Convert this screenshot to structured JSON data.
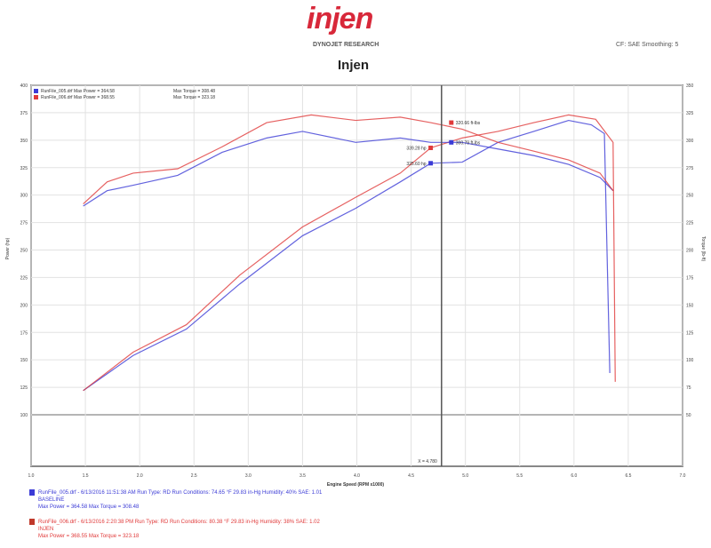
{
  "header": {
    "logo": "injen",
    "company": "DYNOJET RESEARCH",
    "title": "Injen",
    "correction": "CF: SAE  Smoothing: 5"
  },
  "chart_data": {
    "type": "line",
    "xlabel": "Engine Speed (RPM x1000)",
    "ylabel_left": "Power (hp)",
    "ylabel_right": "Torque (lb-ft)",
    "xlim": [
      1.0,
      7.0
    ],
    "xticks": [
      "1.0",
      "1.5",
      "2.0",
      "2.5",
      "3.0",
      "3.5",
      "4.0",
      "4.5",
      "5.0",
      "5.5",
      "6.0",
      "6.5",
      "7.0"
    ],
    "ylim_left": [
      100,
      400
    ],
    "yticks_left": [
      "100",
      "125",
      "150",
      "175",
      "200",
      "225",
      "250",
      "275",
      "300",
      "325",
      "350",
      "375",
      "400"
    ],
    "ylim_right": [
      50,
      350
    ],
    "yticks_right": [
      "50",
      "75",
      "100",
      "125",
      "150",
      "175",
      "200",
      "225",
      "250",
      "275",
      "300",
      "325",
      "350"
    ],
    "grid": true,
    "legend_position": "top-left",
    "legend": [
      {
        "label": "RunFile_005.drf Max Power = 364.58",
        "torque": "Max Torque = 308.48",
        "color": "#3b3bd6"
      },
      {
        "label": "RunFile_006.drf Max Power = 368.55",
        "torque": "Max Torque = 323.18",
        "color": "#e03a3a"
      }
    ],
    "cursor_x": 4.78,
    "cursor_label": "X = 4.780",
    "series": [
      {
        "name": "RunFile_005 Power",
        "axis": "left",
        "color": "#3b3bd6",
        "x": [
          1.48,
          1.94,
          2.43,
          2.92,
          3.5,
          3.99,
          4.4,
          4.68,
          4.97,
          5.3,
          5.63,
          5.95,
          6.16,
          6.28,
          6.3,
          6.33
        ],
        "y": [
          122,
          154,
          178,
          219,
          263,
          288,
          312,
          329,
          330,
          348,
          358,
          368,
          364,
          356,
          267,
          138
        ]
      },
      {
        "name": "RunFile_006 Power",
        "axis": "left",
        "color": "#e03a3a",
        "x": [
          1.48,
          1.94,
          2.43,
          2.92,
          3.5,
          3.99,
          4.4,
          4.68,
          4.97,
          5.3,
          5.63,
          5.95,
          6.2,
          6.36,
          6.38
        ],
        "y": [
          122,
          157,
          182,
          227,
          271,
          298,
          320,
          343,
          352,
          358,
          366,
          373,
          369,
          348,
          130
        ]
      },
      {
        "name": "RunFile_005 Torque",
        "axis": "right",
        "color": "#3b3bd6",
        "x": [
          1.48,
          1.7,
          1.94,
          2.35,
          2.76,
          3.17,
          3.5,
          3.99,
          4.4,
          4.68,
          4.97,
          5.3,
          5.63,
          5.95,
          6.24,
          6.36
        ],
        "y": [
          240,
          254,
          259,
          268,
          289,
          302,
          308,
          298,
          302,
          298,
          298,
          292,
          286,
          278,
          266,
          254
        ]
      },
      {
        "name": "RunFile_006 Torque",
        "axis": "right",
        "color": "#e03a3a",
        "x": [
          1.48,
          1.7,
          1.94,
          2.35,
          2.76,
          3.17,
          3.58,
          3.99,
          4.4,
          4.68,
          4.97,
          5.3,
          5.63,
          5.95,
          6.24,
          6.36
        ],
        "y": [
          242,
          262,
          270,
          274,
          294,
          316,
          323,
          318,
          321,
          316,
          310,
          298,
          290,
          282,
          270,
          254
        ]
      }
    ],
    "annotations": [
      {
        "text": "320.66 ft-lbs",
        "x": 4.87,
        "y": 316,
        "axis": "right",
        "color": "#e03a3a"
      },
      {
        "text": "300.79 ft-lbs",
        "x": 4.87,
        "y": 298,
        "axis": "right",
        "color": "#3b3bd6"
      },
      {
        "text": "339.28 hp",
        "x": 4.68,
        "y": 343,
        "axis": "left",
        "color": "#e03a3a"
      },
      {
        "text": "325.60 hp",
        "x": 4.68,
        "y": 329,
        "axis": "left",
        "color": "#3b3bd6"
      }
    ]
  },
  "runs": [
    {
      "line1": "RunFile_005.drf - 6/13/2016 11:51:38 AM  Run Type: RD  Run Conditions: 74.65 °F 29.83 in-Hg  Humidity: 40%  SAE: 1.01",
      "line2": "BASELINE",
      "line3": "Max Power = 364.58  Max Torque = 308.48",
      "color": "#3b3bd6"
    },
    {
      "line1": "RunFile_006.drf - 6/13/2016 2:20:38 PM  Run Type: RD  Run Conditions: 80.38 °F 29.83 in-Hg  Humidity: 38%  SAE: 1.02",
      "line2": "INJEN",
      "line3": "Max Power = 368.55  Max Torque = 323.18",
      "color": "#e03a3a"
    }
  ]
}
